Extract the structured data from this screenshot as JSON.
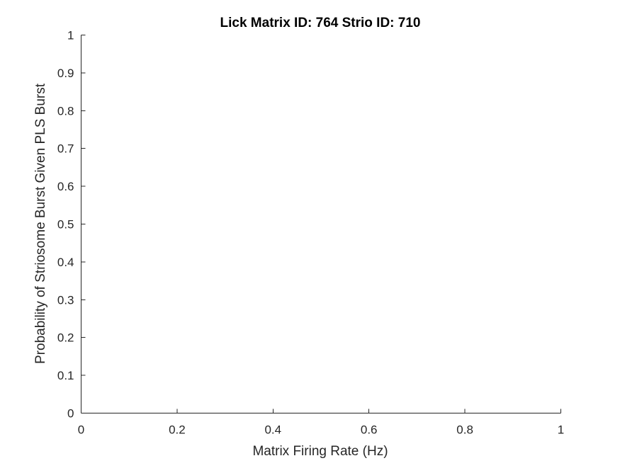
{
  "chart_data": {
    "type": "scatter",
    "title": "Lick Matrix ID: 764 Strio ID: 710",
    "xlabel": "Matrix Firing Rate (Hz)",
    "ylabel": "Probability of Striosome Burst Given PLS Burst",
    "xlim": [
      0,
      1
    ],
    "ylim": [
      0,
      1
    ],
    "xticks": [
      0,
      0.2,
      0.4,
      0.6,
      0.8,
      1
    ],
    "xtick_labels": [
      "0",
      "0.2",
      "0.4",
      "0.6",
      "0.8",
      "1"
    ],
    "yticks": [
      0,
      0.1,
      0.2,
      0.3,
      0.4,
      0.5,
      0.6,
      0.7,
      0.8,
      0.9,
      1
    ],
    "ytick_labels": [
      "0",
      "0.1",
      "0.2",
      "0.3",
      "0.4",
      "0.5",
      "0.6",
      "0.7",
      "0.8",
      "0.9",
      "1"
    ],
    "grid": false,
    "box": false,
    "series": [
      {
        "x": [],
        "y": []
      }
    ]
  }
}
